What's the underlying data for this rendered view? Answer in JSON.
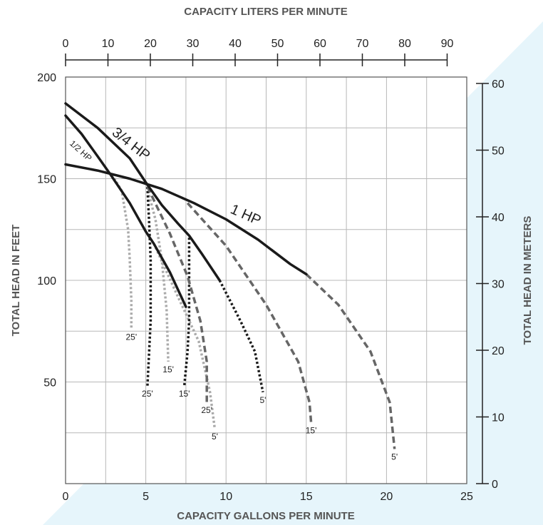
{
  "chart_data": {
    "type": "line",
    "x_label_bottom": "CAPACITY GALLONS PER MINUTE",
    "x_label_top": "CAPACITY LITERS PER MINUTE",
    "y_label_left": "TOTAL HEAD IN FEET",
    "y_label_right": "TOTAL HEAD IN METERS",
    "xlim": [
      0,
      25
    ],
    "ylim": [
      0,
      200
    ],
    "x_ticks": [
      0,
      5,
      10,
      15,
      20,
      25
    ],
    "y_ticks": [
      50,
      100,
      150,
      200
    ],
    "top_ticks": [
      0,
      10,
      20,
      30,
      40,
      50,
      60,
      70,
      80,
      90
    ],
    "right_ticks": [
      0,
      10,
      20,
      30,
      40,
      50,
      60
    ],
    "series": [
      {
        "name": "1/2 HP",
        "style": "solid",
        "color": "#1a1a1a",
        "points": [
          [
            0,
            181
          ],
          [
            1,
            172
          ],
          [
            2,
            161
          ],
          [
            2.8,
            152
          ],
          [
            4,
            138
          ],
          [
            5,
            124
          ],
          [
            5.5,
            118
          ],
          [
            6.5,
            104
          ],
          [
            7.5,
            87
          ]
        ]
      },
      {
        "name": "3/4 HP",
        "style": "solid",
        "color": "#1a1a1a",
        "points": [
          [
            0,
            187
          ],
          [
            2,
            175
          ],
          [
            4,
            160
          ],
          [
            5.1,
            147
          ],
          [
            6,
            137
          ],
          [
            7,
            128
          ],
          [
            7.7,
            122
          ],
          [
            8.5,
            113
          ],
          [
            9.6,
            100
          ]
        ]
      },
      {
        "name": "1 HP",
        "style": "solid",
        "color": "#1a1a1a",
        "points": [
          [
            0,
            157
          ],
          [
            2,
            154
          ],
          [
            4,
            150
          ],
          [
            6,
            145
          ],
          [
            8,
            138
          ],
          [
            10,
            130
          ],
          [
            12,
            120
          ],
          [
            14,
            108
          ],
          [
            15,
            103
          ]
        ]
      }
    ],
    "extensions": [
      {
        "label": "25'",
        "style": "dotted",
        "color": "#aaaaaa",
        "points": [
          [
            2.9,
            152
          ],
          [
            3.5,
            144
          ],
          [
            3.9,
            125
          ],
          [
            4.0,
            110
          ],
          [
            4.1,
            90
          ],
          [
            4.1,
            76
          ]
        ]
      },
      {
        "label": "15'",
        "style": "dotted",
        "color": "#aaaaaa",
        "points": [
          [
            5.0,
            148
          ],
          [
            5.6,
            130
          ],
          [
            6.0,
            110
          ],
          [
            6.3,
            85
          ],
          [
            6.4,
            60
          ]
        ]
      },
      {
        "label": "5'",
        "style": "dotted",
        "color": "#aaaaaa",
        "points": [
          [
            5.5,
            118
          ],
          [
            7,
            92
          ],
          [
            8.3,
            70
          ],
          [
            9,
            45
          ],
          [
            9.3,
            27
          ]
        ]
      },
      {
        "label": "25'",
        "style": "dotted",
        "color": "#1a1a1a",
        "points": [
          [
            5.1,
            146
          ],
          [
            5.2,
            130
          ],
          [
            5.3,
            110
          ],
          [
            5.3,
            80
          ],
          [
            5.1,
            48
          ]
        ]
      },
      {
        "label": "15'",
        "style": "dotted",
        "color": "#1a1a1a",
        "points": [
          [
            7.7,
            121
          ],
          [
            7.7,
            105
          ],
          [
            7.7,
            80
          ],
          [
            7.6,
            65
          ],
          [
            7.4,
            48
          ]
        ]
      },
      {
        "label": "5'",
        "style": "dotted",
        "color": "#1a1a1a",
        "points": [
          [
            9.6,
            100
          ],
          [
            10.9,
            80
          ],
          [
            11.8,
            65
          ],
          [
            12.3,
            45
          ]
        ]
      },
      {
        "label": "25'",
        "style": "dashed",
        "color": "#666666",
        "points": [
          [
            5.1,
            146
          ],
          [
            6.5,
            123
          ],
          [
            7.6,
            102
          ],
          [
            8.4,
            80
          ],
          [
            8.8,
            60
          ],
          [
            8.8,
            40
          ]
        ]
      },
      {
        "label": "15'",
        "style": "dashed",
        "color": "#666666",
        "points": [
          [
            7.6,
            138
          ],
          [
            10,
            117
          ],
          [
            12.5,
            88
          ],
          [
            14.5,
            60
          ],
          [
            15.2,
            40
          ],
          [
            15.3,
            30
          ]
        ]
      },
      {
        "label": "5'",
        "style": "dashed",
        "color": "#666666",
        "points": [
          [
            15,
            103
          ],
          [
            17,
            88
          ],
          [
            19,
            65
          ],
          [
            20.2,
            40
          ],
          [
            20.5,
            17
          ]
        ]
      }
    ]
  }
}
